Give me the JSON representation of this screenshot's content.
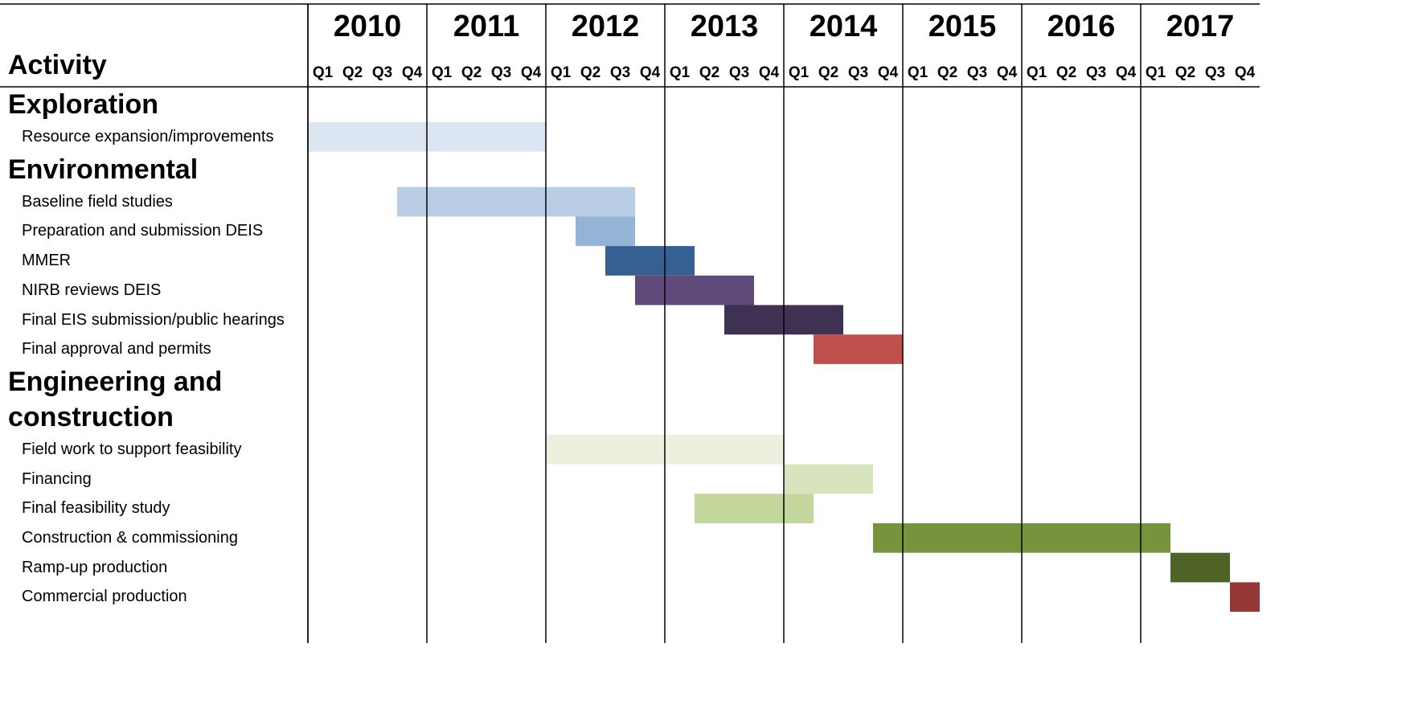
{
  "chart_data": {
    "type": "gantt",
    "ylabel": "Activity",
    "xlim": [
      2010,
      2018
    ],
    "xticks": [
      2010,
      2011,
      2012,
      2013,
      2014,
      2015,
      2016,
      2017
    ],
    "quarters": [
      "Q1",
      "Q2",
      "Q3",
      "Q4"
    ],
    "groups": [
      {
        "name": "Exploration",
        "tasks": [
          {
            "name": "Resource expansion/improvements",
            "start": 2010,
            "end": 2012,
            "color": "#dce6f2"
          }
        ]
      },
      {
        "name": "Environmental",
        "tasks": [
          {
            "name": "Baseline field studies",
            "start": 2010.75,
            "end": 2012.75,
            "color": "#b9cde5"
          },
          {
            "name": "Preparation and submission DEIS",
            "start": 2012.25,
            "end": 2012.75,
            "color": "#95b3d7"
          },
          {
            "name": "MMER",
            "start": 2012.5,
            "end": 2013.25,
            "color": "#376092"
          },
          {
            "name": "NIRB reviews DEIS",
            "start": 2012.75,
            "end": 2013.75,
            "color": "#604a7b"
          },
          {
            "name": "Final EIS submission/public hearings",
            "start": 2013.5,
            "end": 2014.5,
            "color": "#3f3151"
          },
          {
            "name": "Final approval and permits",
            "start": 2014.25,
            "end": 2015,
            "color": "#c0504d"
          }
        ]
      },
      {
        "name": "Engineering and construction",
        "tasks": [
          {
            "name": "Field work to support feasibility",
            "start": 2012,
            "end": 2014,
            "color": "#ebf1de"
          },
          {
            "name": "Financing",
            "start": 2014,
            "end": 2014.75,
            "color": "#d7e4bd"
          },
          {
            "name": "Final feasibility study",
            "start": 2013.25,
            "end": 2014.25,
            "color": "#c3d69b"
          },
          {
            "name": "Construction & commissioning",
            "start": 2014.75,
            "end": 2017.25,
            "color": "#77933c"
          },
          {
            "name": "Ramp-up production",
            "start": 2017.25,
            "end": 2017.75,
            "color": "#4f6228"
          },
          {
            "name": "Commercial production",
            "start": 2017.75,
            "end": 2018,
            "color": "#953735"
          }
        ]
      }
    ]
  }
}
